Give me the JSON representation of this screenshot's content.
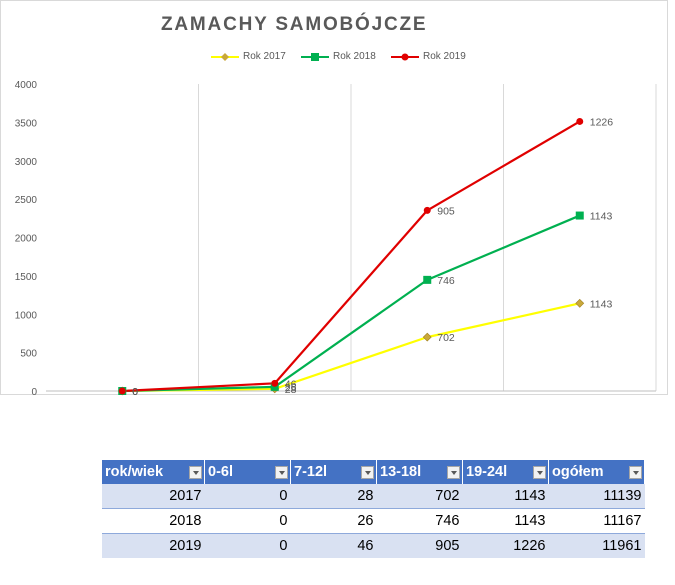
{
  "chart_data": {
    "type": "line",
    "title": "ZAMACHY SAMOBÓJCZE",
    "categories": [
      "0-6L",
      "7-12L",
      "13-18L",
      "19-24L"
    ],
    "ylim": [
      0,
      4000
    ],
    "yticks": [
      "0",
      "500",
      "1000",
      "1500",
      "2000",
      "2500",
      "3000",
      "3500",
      "4000"
    ],
    "grid": "vertical",
    "legend": "top",
    "series": [
      {
        "name": "Rok 2017",
        "color": "#ffff00",
        "marker": "diamond",
        "markerColor": "#c9a83a",
        "values": [
          0,
          28,
          702,
          1143
        ],
        "labels": [
          "0",
          "28",
          "702",
          "1143"
        ]
      },
      {
        "name": "Rok 2018",
        "color": "#00b050",
        "marker": "square",
        "markerColor": "#00b050",
        "values": [
          0,
          54,
          1448,
          2286
        ],
        "labels": [
          "0",
          "26",
          "746",
          "1143"
        ]
      },
      {
        "name": "Rok 2019",
        "color": "#e00000",
        "marker": "circle",
        "markerColor": "#e00000",
        "values": [
          0,
          100,
          2353,
          3512
        ],
        "labels": [
          "0",
          "46",
          "905",
          "1226"
        ]
      }
    ]
  },
  "table": {
    "headers": [
      "rok/wiek",
      "0-6l",
      "7-12l",
      "13-18l",
      "19-24l",
      "ogółem"
    ],
    "rows": [
      [
        "2017",
        "0",
        "28",
        "702",
        "1143",
        "11139"
      ],
      [
        "2018",
        "0",
        "26",
        "746",
        "1143",
        "11167"
      ],
      [
        "2019",
        "0",
        "46",
        "905",
        "1226",
        "11961"
      ]
    ]
  }
}
